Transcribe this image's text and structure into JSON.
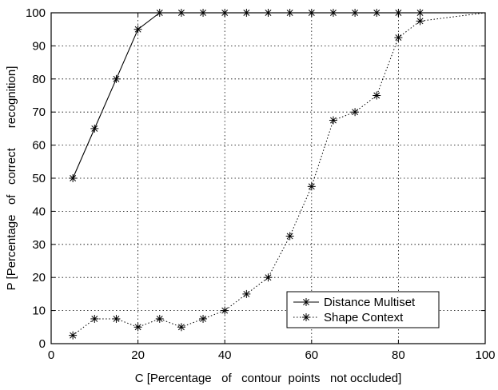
{
  "chart_data": {
    "type": "line",
    "title": "",
    "xlabel": "C [Percentage   of   contour  points   not occluded]",
    "ylabel": "P [Percentage   of   correct      recognition]",
    "xlim": [
      0,
      100
    ],
    "ylim": [
      0,
      100
    ],
    "xticks": [
      0,
      20,
      40,
      60,
      80,
      100
    ],
    "yticks": [
      0,
      10,
      20,
      30,
      40,
      50,
      60,
      70,
      80,
      90,
      100
    ],
    "grid": true,
    "legend_position": "bottom-right",
    "series": [
      {
        "name": "Distance Multiset",
        "line_style": "solid",
        "marker": "*",
        "color": "#000000",
        "x": [
          5,
          10,
          15,
          20,
          25,
          30,
          35,
          40,
          45,
          50,
          55,
          60,
          65,
          70,
          75,
          80,
          85
        ],
        "y": [
          50,
          65,
          80,
          95,
          100,
          100,
          100,
          100,
          100,
          100,
          100,
          100,
          100,
          100,
          100,
          100,
          100
        ]
      },
      {
        "name": "Shape Context",
        "line_style": "dotted",
        "marker": "*",
        "color": "#000000",
        "x": [
          5,
          10,
          15,
          20,
          25,
          30,
          35,
          40,
          45,
          50,
          55,
          60,
          65,
          70,
          75,
          80,
          85,
          100
        ],
        "y": [
          2.5,
          7.5,
          7.5,
          5,
          7.5,
          5,
          7.5,
          10,
          15,
          20,
          32.5,
          47.5,
          67.5,
          70,
          75,
          92.5,
          97.5,
          100
        ]
      }
    ]
  }
}
